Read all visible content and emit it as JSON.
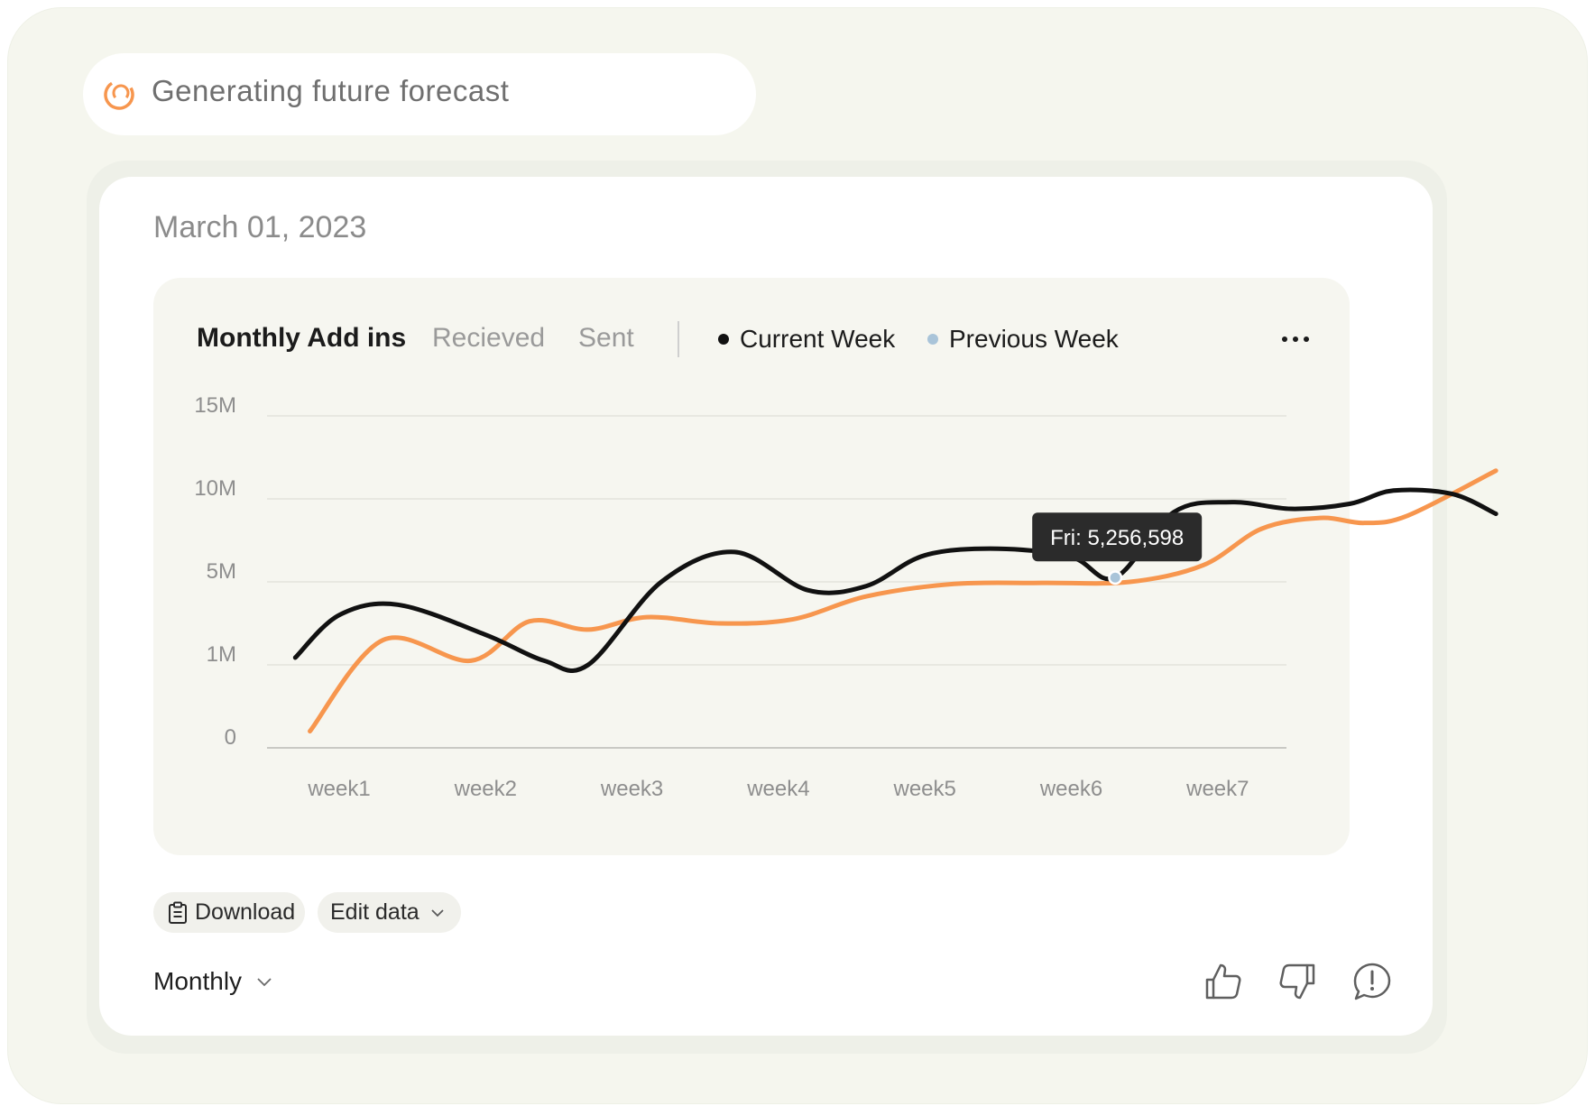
{
  "status": {
    "text": "Generating future forecast",
    "icon": "loading-spinner-icon",
    "accent_color": "#f7964e"
  },
  "card": {
    "date": "March 01, 2023"
  },
  "chart_header": {
    "tabs": [
      {
        "label": "Monthly Add ins",
        "active": true
      },
      {
        "label": "Recieved",
        "active": false
      },
      {
        "label": "Sent",
        "active": false
      }
    ],
    "legend": [
      {
        "label": "Current Week",
        "color": "#111111"
      },
      {
        "label": "Previous Week",
        "color": "#a9c4d9"
      }
    ],
    "more_icon": "more-horizontal-icon"
  },
  "chart_data": {
    "type": "line",
    "title": "Monthly Add ins",
    "xlabel": "",
    "ylabel": "",
    "categories": [
      "week1",
      "week2",
      "week3",
      "week4",
      "week5",
      "week6",
      "week7"
    ],
    "y_ticks": [
      "0",
      "1M",
      "5M",
      "10M",
      "15M"
    ],
    "grid": true,
    "legend_position": "top",
    "series": [
      {
        "name": "Current Week",
        "color": "#111111",
        "points": [
          [
            0.7,
            1.35
          ],
          [
            1.0,
            3.4
          ],
          [
            1.4,
            3.9
          ],
          [
            2.0,
            2.45
          ],
          [
            2.4,
            1.2
          ],
          [
            2.7,
            1.0
          ],
          [
            3.2,
            5.0
          ],
          [
            3.7,
            6.8
          ],
          [
            4.2,
            4.6
          ],
          [
            4.6,
            4.8
          ],
          [
            5.0,
            6.6
          ],
          [
            5.5,
            7.0
          ],
          [
            6.0,
            6.5
          ],
          [
            6.3,
            5.26
          ],
          [
            6.7,
            9.2
          ],
          [
            7.1,
            9.8
          ],
          [
            7.5,
            9.4
          ],
          [
            7.9,
            9.7
          ],
          [
            8.2,
            10.5
          ],
          [
            8.6,
            10.3
          ],
          [
            8.9,
            9.1
          ]
        ]
      },
      {
        "name": "Previous Week",
        "color": "#f7964e",
        "points": [
          [
            0.8,
            0.2
          ],
          [
            1.3,
            2.2
          ],
          [
            1.9,
            1.2
          ],
          [
            2.3,
            3.1
          ],
          [
            2.7,
            2.7
          ],
          [
            3.1,
            3.3
          ],
          [
            3.6,
            3.0
          ],
          [
            4.1,
            3.2
          ],
          [
            4.6,
            4.3
          ],
          [
            5.2,
            4.9
          ],
          [
            5.8,
            4.95
          ],
          [
            6.4,
            5.0
          ],
          [
            6.9,
            6.0
          ],
          [
            7.3,
            8.2
          ],
          [
            7.7,
            8.85
          ],
          [
            8.0,
            8.55
          ],
          [
            8.3,
            9.0
          ],
          [
            8.9,
            11.7
          ]
        ]
      }
    ],
    "tooltip": {
      "label": "Fri: 5,256,598",
      "x": 6.3,
      "y": 5.26,
      "point_color": "#a9c4d9"
    }
  },
  "actions": {
    "download_label": "Download",
    "download_icon": "clipboard-icon",
    "edit_label": "Edit data",
    "edit_icon": "chevron-down-icon"
  },
  "period": {
    "label": "Monthly",
    "icon": "chevron-down-icon"
  },
  "feedback": {
    "like_icon": "thumbs-up-icon",
    "dislike_icon": "thumbs-down-icon",
    "report_icon": "alert-icon"
  }
}
